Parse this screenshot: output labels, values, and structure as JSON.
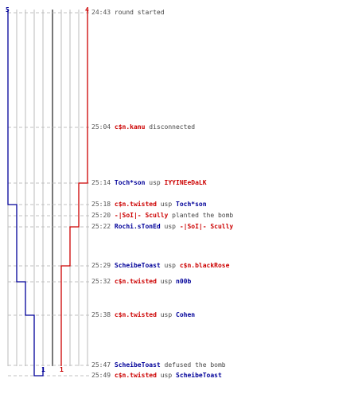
{
  "scores": {
    "blue_start": "5",
    "red_start": "4",
    "blue_end": "1",
    "red_end": "1"
  },
  "colors": {
    "red_team": "#cc0000",
    "blue_team": "#000099",
    "grid": "#bbbbbb",
    "center": "#777777",
    "dashed": "#c0c0c0",
    "text": "#444444"
  },
  "events": [
    {
      "time": "24:43",
      "parts": [
        {
          "text": "round started",
          "team": "none"
        }
      ]
    },
    {
      "time": "25:04",
      "parts": [
        {
          "text": "c$n.kanu",
          "team": "red"
        },
        {
          "text": "disconnected",
          "team": "none"
        }
      ]
    },
    {
      "time": "25:14",
      "parts": [
        {
          "text": "Toch*son",
          "team": "blue"
        },
        {
          "text": "usp",
          "team": "none"
        },
        {
          "text": "IYYINEeDaLK",
          "team": "red"
        }
      ]
    },
    {
      "time": "25:18",
      "parts": [
        {
          "text": "c$n.twisted",
          "team": "red"
        },
        {
          "text": "usp",
          "team": "none"
        },
        {
          "text": "Toch*son",
          "team": "blue"
        }
      ]
    },
    {
      "time": "25:20",
      "parts": [
        {
          "text": "-|SoI|- Scully",
          "team": "red"
        },
        {
          "text": "planted the bomb",
          "team": "none"
        }
      ]
    },
    {
      "time": "25:22",
      "parts": [
        {
          "text": "Rochi.sTonEd",
          "team": "blue"
        },
        {
          "text": "usp",
          "team": "none"
        },
        {
          "text": "-|SoI|- Scully",
          "team": "red"
        }
      ]
    },
    {
      "time": "25:29",
      "parts": [
        {
          "text": "ScheibeToast",
          "team": "blue"
        },
        {
          "text": "usp",
          "team": "none"
        },
        {
          "text": "c$n.blackRose",
          "team": "red"
        }
      ]
    },
    {
      "time": "25:32",
      "parts": [
        {
          "text": "c$n.twisted",
          "team": "red"
        },
        {
          "text": "usp",
          "team": "none"
        },
        {
          "text": "n00b",
          "team": "blue"
        }
      ]
    },
    {
      "time": "25:38",
      "parts": [
        {
          "text": "c$n.twisted",
          "team": "red"
        },
        {
          "text": "usp",
          "team": "none"
        },
        {
          "text": "Cohen",
          "team": "blue"
        }
      ]
    },
    {
      "time": "25:47",
      "parts": [
        {
          "text": "ScheibeToast",
          "team": "blue"
        },
        {
          "text": "defused the bomb",
          "team": "none"
        }
      ]
    },
    {
      "time": "25:49",
      "parts": [
        {
          "text": "c$n.twisted",
          "team": "red"
        },
        {
          "text": "usp",
          "team": "none"
        },
        {
          "text": "ScheibeToast",
          "team": "blue"
        }
      ]
    }
  ]
}
